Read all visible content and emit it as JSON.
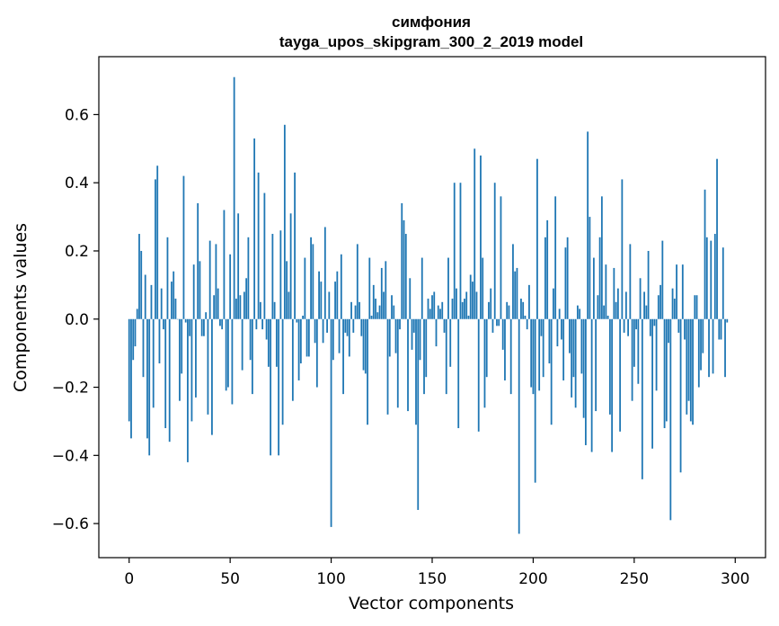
{
  "chart_data": {
    "type": "bar",
    "title": "симфония",
    "subtitle": "tayga_upos_skipgram_300_2_2019 model",
    "xlabel": "Vector components",
    "ylabel": "Components values",
    "xlim": [
      -15,
      315
    ],
    "ylim": [
      -0.7,
      0.77
    ],
    "xticks": [
      0,
      50,
      100,
      150,
      200,
      250,
      300
    ],
    "xtick_labels": [
      "0",
      "50",
      "100",
      "150",
      "200",
      "250",
      "300"
    ],
    "yticks": [
      -0.6,
      -0.4,
      -0.2,
      0.0,
      0.2,
      0.4,
      0.6
    ],
    "ytick_labels": [
      "−0.6",
      "−0.4",
      "−0.2",
      "0.0",
      "0.2",
      "0.4",
      "0.6"
    ],
    "grid": false,
    "bar_color": "#1f77b4",
    "x": "0..299",
    "values": [
      -0.3,
      -0.35,
      -0.12,
      -0.08,
      0.03,
      0.25,
      0.2,
      -0.17,
      0.13,
      -0.35,
      -0.4,
      0.1,
      -0.26,
      0.41,
      0.45,
      -0.13,
      0.09,
      -0.03,
      -0.32,
      0.24,
      -0.36,
      0.11,
      0.14,
      0.06,
      0.0,
      -0.24,
      -0.16,
      0.42,
      -0.01,
      -0.42,
      -0.05,
      -0.3,
      0.16,
      -0.23,
      0.34,
      0.17,
      -0.05,
      -0.05,
      0.02,
      -0.28,
      0.23,
      -0.34,
      0.07,
      0.22,
      0.09,
      -0.02,
      -0.03,
      0.32,
      -0.21,
      -0.2,
      0.19,
      -0.25,
      0.71,
      0.06,
      0.31,
      0.07,
      -0.15,
      0.08,
      0.12,
      0.24,
      -0.12,
      -0.22,
      0.53,
      -0.03,
      0.43,
      0.05,
      -0.03,
      0.37,
      -0.06,
      -0.14,
      -0.4,
      0.25,
      0.05,
      -0.14,
      -0.4,
      0.26,
      -0.31,
      0.57,
      0.17,
      0.08,
      0.31,
      -0.24,
      0.43,
      -0.01,
      -0.18,
      -0.13,
      0.01,
      0.18,
      -0.11,
      -0.11,
      0.24,
      0.22,
      -0.07,
      -0.2,
      0.14,
      0.11,
      -0.07,
      0.27,
      -0.04,
      0.08,
      -0.61,
      -0.12,
      0.11,
      0.14,
      -0.1,
      0.19,
      -0.22,
      -0.04,
      -0.05,
      -0.11,
      0.05,
      -0.04,
      0.04,
      0.22,
      0.05,
      -0.05,
      -0.15,
      -0.16,
      -0.31,
      0.18,
      0.01,
      0.1,
      0.06,
      0.02,
      0.04,
      0.15,
      0.08,
      0.17,
      -0.28,
      -0.11,
      0.07,
      0.04,
      -0.1,
      -0.26,
      -0.03,
      0.34,
      0.29,
      0.25,
      -0.27,
      0.12,
      -0.09,
      -0.04,
      -0.31,
      -0.56,
      -0.12,
      0.18,
      -0.22,
      -0.17,
      0.06,
      0.03,
      0.07,
      0.08,
      -0.08,
      0.04,
      0.03,
      0.05,
      -0.04,
      -0.22,
      0.18,
      -0.14,
      0.06,
      0.4,
      0.09,
      -0.32,
      0.4,
      0.05,
      0.06,
      0.08,
      0.01,
      0.13,
      0.11,
      0.5,
      0.08,
      -0.33,
      0.48,
      0.18,
      -0.26,
      -0.17,
      0.05,
      0.09,
      -0.04,
      0.4,
      -0.02,
      -0.02,
      0.36,
      -0.09,
      -0.18,
      0.05,
      0.04,
      -0.22,
      0.22,
      0.14,
      0.15,
      -0.63,
      0.06,
      0.05,
      0.01,
      -0.03,
      0.1,
      -0.2,
      -0.22,
      -0.48,
      0.47,
      -0.21,
      -0.05,
      -0.17,
      0.24,
      0.29,
      -0.13,
      -0.31,
      0.09,
      0.36,
      -0.08,
      0.03,
      -0.06,
      -0.18,
      0.21,
      0.24,
      -0.1,
      -0.23,
      -0.17,
      -0.26,
      0.04,
      0.03,
      -0.16,
      -0.29,
      -0.37,
      0.55,
      0.3,
      -0.39,
      0.18,
      -0.27,
      0.07,
      0.24,
      0.36,
      0.04,
      0.16,
      0.01,
      -0.28,
      -0.39,
      0.15,
      0.05,
      0.09,
      -0.33,
      0.41,
      -0.04,
      0.08,
      -0.05,
      0.22,
      -0.24,
      -0.14,
      -0.03,
      -0.19,
      0.12,
      -0.47,
      0.08,
      0.04,
      0.2,
      -0.05,
      -0.38,
      -0.02,
      -0.21,
      0.07,
      0.1,
      0.23,
      -0.32,
      -0.3,
      -0.07,
      -0.59,
      0.09,
      0.06,
      0.16,
      -0.04,
      -0.45,
      0.16,
      -0.06,
      -0.28,
      -0.24,
      -0.3,
      -0.31,
      0.07,
      0.07,
      -0.2,
      -0.15,
      -0.1,
      0.38,
      0.24,
      -0.17,
      0.23,
      -0.16,
      0.25,
      0.47,
      -0.06,
      -0.06,
      0.21,
      -0.17,
      -0.01
    ]
  }
}
